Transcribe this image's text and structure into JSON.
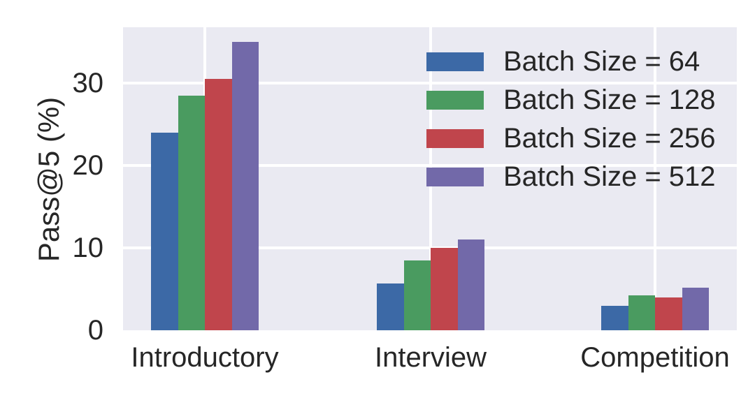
{
  "figure": {
    "background": "#ffffff",
    "plot_background": "#eaeaf2",
    "grid_color": "#ffffff",
    "text_color": "#262626"
  },
  "chart_data": {
    "type": "bar",
    "title": "",
    "xlabel": "",
    "ylabel": "Pass@5 (%)",
    "categories": [
      "Introductory",
      "Interview",
      "Competition"
    ],
    "series": [
      {
        "name": "Batch Size = 64",
        "color": "#3c69a6",
        "values": [
          24.0,
          5.7,
          3.0
        ]
      },
      {
        "name": "Batch Size = 128",
        "color": "#4a9b60",
        "values": [
          28.5,
          8.5,
          4.2
        ]
      },
      {
        "name": "Batch Size = 256",
        "color": "#c0454c",
        "values": [
          30.5,
          10.0,
          4.0
        ]
      },
      {
        "name": "Batch Size = 512",
        "color": "#7269a9",
        "values": [
          35.0,
          11.0,
          5.2
        ]
      }
    ],
    "y_ticks": [
      0,
      10,
      20,
      30
    ],
    "ylim": [
      0,
      36.8
    ],
    "grid": true,
    "legend_position": "upper-right",
    "legend_frame": false
  }
}
